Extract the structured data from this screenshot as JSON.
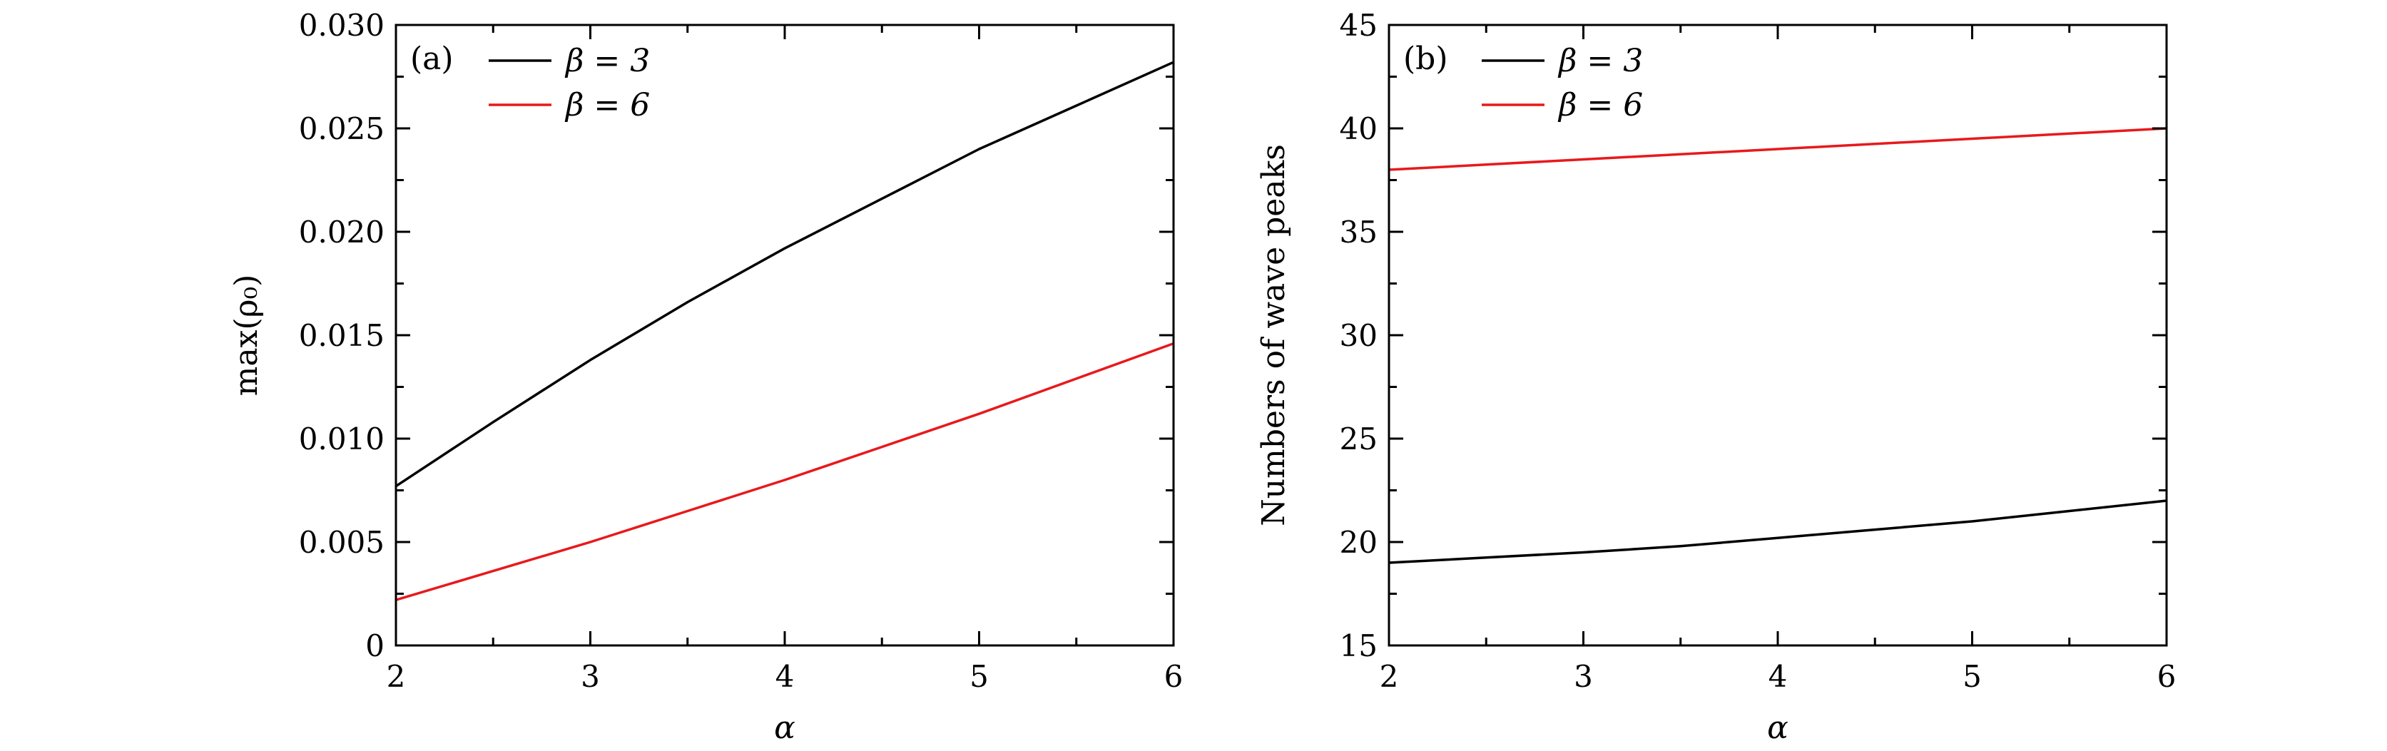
{
  "chart_data": [
    {
      "type": "line",
      "panel_label": "(a)",
      "xlabel": "α",
      "ylabel": "max(ρ₀)",
      "xlim": [
        2,
        6
      ],
      "ylim": [
        0,
        0.03
      ],
      "xticks": [
        2,
        3,
        4,
        5,
        6
      ],
      "xtick_labels": [
        "2",
        "3",
        "4",
        "5",
        "6"
      ],
      "yticks": [
        0,
        0.005,
        0.01,
        0.015,
        0.02,
        0.025,
        0.03
      ],
      "ytick_labels": [
        "0",
        "0.005",
        "0.010",
        "0.015",
        "0.020",
        "0.025",
        "0.030"
      ],
      "legend_position": "top-left",
      "grid": false,
      "series": [
        {
          "name": "β = 3",
          "color": "#000000",
          "x": [
            2,
            2.5,
            3,
            3.5,
            4,
            4.5,
            5,
            5.5,
            6
          ],
          "y": [
            0.0077,
            0.0108,
            0.0138,
            0.0166,
            0.0192,
            0.0216,
            0.024,
            0.0261,
            0.0282
          ]
        },
        {
          "name": "β = 6",
          "color": "#e8191c",
          "x": [
            2,
            2.5,
            3,
            3.5,
            4,
            4.5,
            5,
            5.5,
            6
          ],
          "y": [
            0.0022,
            0.0036,
            0.005,
            0.0065,
            0.008,
            0.0096,
            0.0112,
            0.0129,
            0.0146
          ]
        }
      ]
    },
    {
      "type": "line",
      "panel_label": "(b)",
      "xlabel": "α",
      "ylabel": "Numbers of wave peaks",
      "xlim": [
        2,
        6
      ],
      "ylim": [
        15,
        45
      ],
      "xticks": [
        2,
        3,
        4,
        5,
        6
      ],
      "xtick_labels": [
        "2",
        "3",
        "4",
        "5",
        "6"
      ],
      "yticks": [
        15,
        20,
        25,
        30,
        35,
        40,
        45
      ],
      "ytick_labels": [
        "15",
        "20",
        "25",
        "30",
        "35",
        "40",
        "45"
      ],
      "legend_position": "top-left",
      "grid": false,
      "series": [
        {
          "name": "β = 3",
          "color": "#000000",
          "x": [
            2,
            2.5,
            3,
            3.5,
            4,
            4.5,
            5,
            5.5,
            6
          ],
          "y": [
            19.0,
            19.25,
            19.5,
            19.8,
            20.2,
            20.6,
            21.0,
            21.5,
            22.0
          ]
        },
        {
          "name": "β = 6",
          "color": "#e8191c",
          "x": [
            2,
            2.5,
            3,
            3.5,
            4,
            4.5,
            5,
            5.5,
            6
          ],
          "y": [
            38.0,
            38.25,
            38.5,
            38.75,
            39.0,
            39.25,
            39.5,
            39.75,
            40.0
          ]
        }
      ]
    }
  ]
}
